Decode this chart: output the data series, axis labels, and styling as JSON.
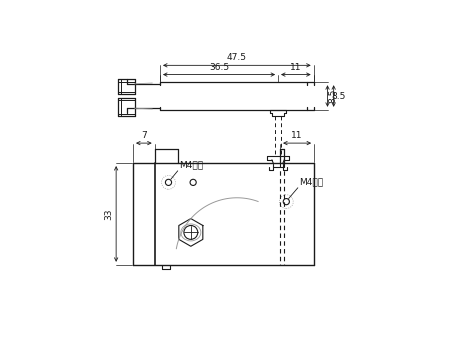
{
  "bg_color": "#ffffff",
  "line_color": "#1a1a1a",
  "gray_color": "#999999",
  "dim_47_5": "47.5",
  "dim_36_5": "36.5",
  "dim_11_top": "11",
  "dim_8_5": "8.5",
  "dim_7": "7",
  "dim_11_bot": "11",
  "dim_33": "33",
  "label_m4sara_top": "M4サラ",
  "label_m4sara_bot": "M4サラ"
}
